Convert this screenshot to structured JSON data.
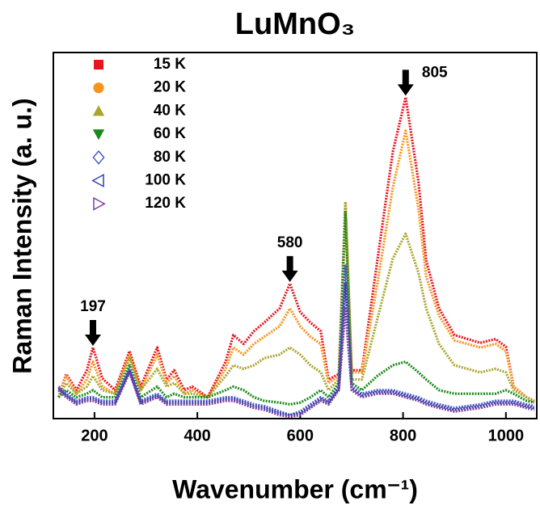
{
  "chart_data": {
    "type": "line",
    "title": "LuMnO₃",
    "x_label": "Wavenumber (cm⁻¹)",
    "y_label": "Raman Intensity (a. u.)",
    "x": [
      130,
      145,
      165,
      185,
      197,
      215,
      240,
      268,
      290,
      322,
      340,
      355,
      375,
      390,
      420,
      455,
      470,
      490,
      510,
      530,
      560,
      580,
      600,
      620,
      640,
      655,
      675,
      688,
      700,
      720,
      750,
      780,
      805,
      830,
      845,
      870,
      900,
      950,
      980,
      1000,
      1015,
      1040,
      1055
    ],
    "xlim": [
      120,
      1060
    ],
    "xticks": [
      200,
      400,
      600,
      800,
      1000
    ],
    "ylim": [
      -3,
      100
    ],
    "legend": "upper left",
    "series": [
      {
        "name": "15 K",
        "color": "#e8141e",
        "marker": "square",
        "values": [
          3,
          9.5,
          5,
          10.6,
          17,
          8.4,
          5,
          16,
          6,
          17,
          8,
          10.6,
          5,
          6,
          3,
          13,
          20.5,
          18,
          21.6,
          24,
          28,
          35,
          27,
          24,
          21.6,
          8,
          9.5,
          58,
          10.6,
          10.6,
          41.5,
          72,
          87.4,
          63.6,
          41.5,
          28,
          20.5,
          18.3,
          19.4,
          17.2,
          6,
          3,
          1.8
        ]
      },
      {
        "name": "20 K",
        "color": "#f7941d",
        "marker": "circle",
        "values": [
          3,
          9,
          4,
          8,
          13,
          6,
          4,
          15,
          5,
          15,
          7,
          9,
          4,
          5,
          3,
          11,
          17,
          15,
          18,
          20,
          23,
          28,
          23,
          20,
          18,
          7,
          9,
          55,
          10,
          10,
          35,
          62,
          78,
          56,
          37,
          26,
          19,
          17,
          18,
          16,
          6,
          3,
          2
        ]
      },
      {
        "name": "40 K",
        "color": "#aaa52e",
        "marker": "triangle-up",
        "values": [
          3,
          7,
          4,
          6,
          9,
          5,
          4,
          14,
          5,
          11,
          6,
          7,
          4,
          4,
          3,
          9,
          12,
          11,
          12,
          14,
          15,
          17,
          15,
          12,
          10,
          5,
          8,
          58,
          8,
          8,
          25,
          42,
          49,
          38,
          28,
          18,
          12,
          10,
          11,
          10,
          5,
          3,
          2
        ]
      },
      {
        "name": "60 K",
        "color": "#1a8a1a",
        "marker": "triangle-down",
        "values": [
          3,
          5,
          3,
          4,
          5,
          3,
          3,
          12,
          3,
          6,
          3,
          4,
          3,
          3,
          3,
          5,
          6,
          5,
          3,
          2,
          1.5,
          1,
          1.5,
          3,
          5,
          3,
          7,
          55,
          7,
          5,
          9,
          12,
          13,
          10,
          8,
          5,
          4,
          4,
          4,
          5,
          4,
          2,
          1.5
        ]
      },
      {
        "name": "80 K",
        "color": "#4a5bc4",
        "marker": "diamond-open",
        "values": [
          6,
          4,
          2,
          3,
          3,
          2,
          2,
          11,
          2,
          4,
          2,
          2,
          2,
          2,
          2,
          3,
          3,
          2,
          1,
          0.5,
          -1,
          -2,
          -1,
          1,
          3,
          2,
          6,
          40,
          6,
          4,
          5,
          5,
          4,
          3,
          2,
          1,
          0,
          1,
          2,
          2,
          2,
          1,
          0.5
        ]
      },
      {
        "name": "100 K",
        "color": "#3540a8",
        "marker": "triangle-left-open",
        "values": [
          5.5,
          3.5,
          1.5,
          2.5,
          2.5,
          1.5,
          1.5,
          10.5,
          1.5,
          3.5,
          1.5,
          1.5,
          1.5,
          1.5,
          1.5,
          2.5,
          2.5,
          1.5,
          0.5,
          0,
          -1.5,
          -2,
          -1.5,
          0.5,
          2.5,
          1.5,
          5.5,
          35,
          5.5,
          3.5,
          4.5,
          4.5,
          3.5,
          2.5,
          1.5,
          0.5,
          -0.5,
          0.5,
          1.5,
          1.5,
          1.5,
          0.5,
          0
        ]
      },
      {
        "name": "120 K",
        "color": "#7b3fa0",
        "marker": "triangle-right-open",
        "values": [
          5,
          3,
          1,
          2,
          2,
          1,
          1,
          10,
          1,
          3,
          1,
          1,
          1,
          1,
          1,
          2,
          2,
          1,
          0,
          -0.5,
          -2,
          -2.5,
          -2,
          0,
          2,
          1,
          5,
          28,
          5,
          3,
          4,
          4,
          3,
          2,
          1,
          0,
          -1,
          0,
          1,
          1,
          1,
          0,
          -0.5
        ]
      }
    ],
    "annotations": [
      {
        "text": "197",
        "x": 197,
        "y": 17
      },
      {
        "text": "580",
        "x": 580,
        "y": 35
      },
      {
        "text": "805",
        "x": 805,
        "y": 87.4
      }
    ]
  }
}
